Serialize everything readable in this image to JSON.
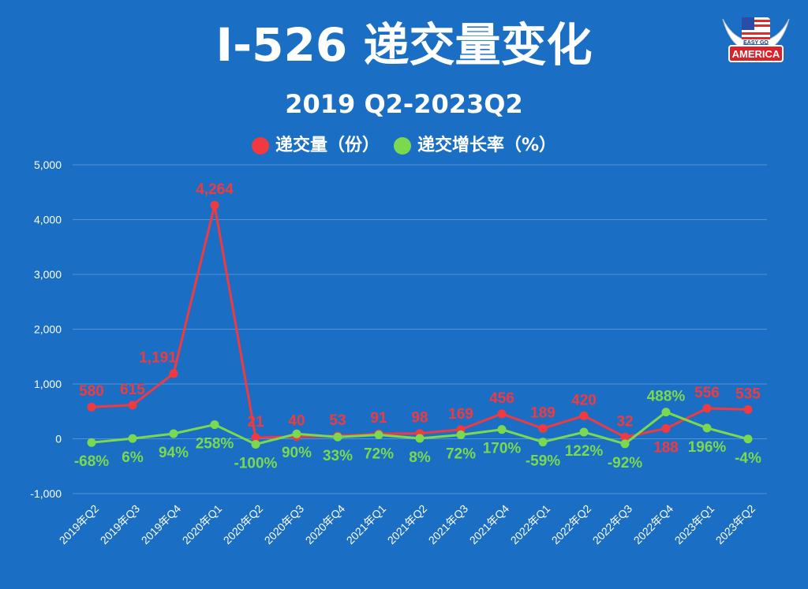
{
  "chart_data": {
    "type": "line",
    "title": "I-526 递交量变化",
    "subtitle": "2019 Q2-2023Q2",
    "xlabel": "",
    "ylabel": "",
    "ylim": [
      -1000,
      5000
    ],
    "yticks": [
      -1000,
      0,
      1000,
      2000,
      3000,
      4000,
      5000
    ],
    "ytick_labels": [
      "-1,000",
      "0",
      "1,000",
      "2,000",
      "3,000",
      "4,000",
      "5,000"
    ],
    "grid": true,
    "legend_position": "top-center",
    "categories": [
      "2019年Q2",
      "2019年Q3",
      "2019年Q4",
      "2020年Q1",
      "2020年Q2",
      "2020年Q3",
      "2020年Q4",
      "2021年Q1",
      "2021年Q2",
      "2021年Q3",
      "2021年Q4",
      "2022年Q1",
      "2022年Q2",
      "2022年Q3",
      "2022年Q4",
      "2023年Q1",
      "2023年Q2"
    ],
    "series": [
      {
        "name": "递交量（份）",
        "color": "#f03a3f",
        "values": [
          580,
          615,
          1191,
          4264,
          21,
          40,
          53,
          91,
          98,
          169,
          456,
          189,
          420,
          32,
          188,
          556,
          535
        ],
        "labels": [
          "580",
          "615",
          "1,191",
          "4,264",
          "21",
          "40",
          "53",
          "91",
          "98",
          "169",
          "456",
          "189",
          "420",
          "32",
          "188",
          "556",
          "535"
        ]
      },
      {
        "name": "递交增长率（%）",
        "color": "#7ad94f",
        "values": [
          -68,
          6,
          94,
          258,
          -100,
          90,
          33,
          72,
          8,
          72,
          170,
          -59,
          122,
          -92,
          488,
          196,
          -4
        ],
        "labels": [
          "-68%",
          "6%",
          "94%",
          "258%",
          "-100%",
          "90%",
          "33%",
          "72%",
          "8%",
          "72%",
          "170%",
          "-59%",
          "122%",
          "-92%",
          "488%",
          "196%",
          "-4%"
        ]
      }
    ]
  },
  "logo": {
    "top_text": "EASY GO",
    "main_text": "AMERICA"
  }
}
